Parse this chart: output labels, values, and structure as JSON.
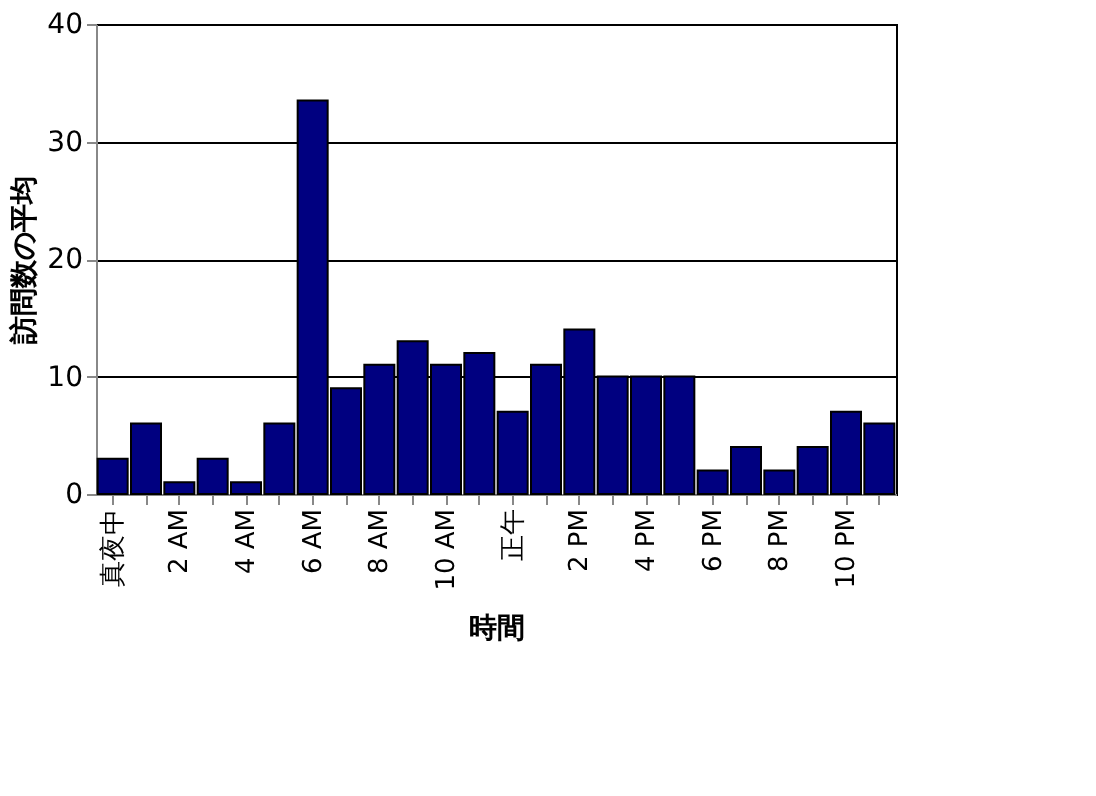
{
  "chart_data": {
    "type": "bar",
    "xlabel": "時間",
    "ylabel": "訪問数の平均",
    "categories": [
      "真夜中",
      null,
      "2 AM",
      null,
      "4 AM",
      null,
      "6 AM",
      null,
      "8 AM",
      null,
      "10 AM",
      null,
      "正午",
      null,
      "2 PM",
      null,
      "4 PM",
      null,
      "6 PM",
      null,
      "8 PM",
      null,
      "10 PM",
      null
    ],
    "values": [
      3,
      6,
      1,
      3,
      1,
      6,
      33.5,
      9,
      11,
      13,
      11,
      12,
      7,
      11,
      14,
      10,
      10,
      10,
      2,
      4,
      2,
      4,
      7,
      6
    ],
    "color": "#000080",
    "ylim": [
      0,
      40
    ],
    "yticks": [
      0,
      10,
      20,
      30,
      40
    ],
    "grid": "y"
  }
}
